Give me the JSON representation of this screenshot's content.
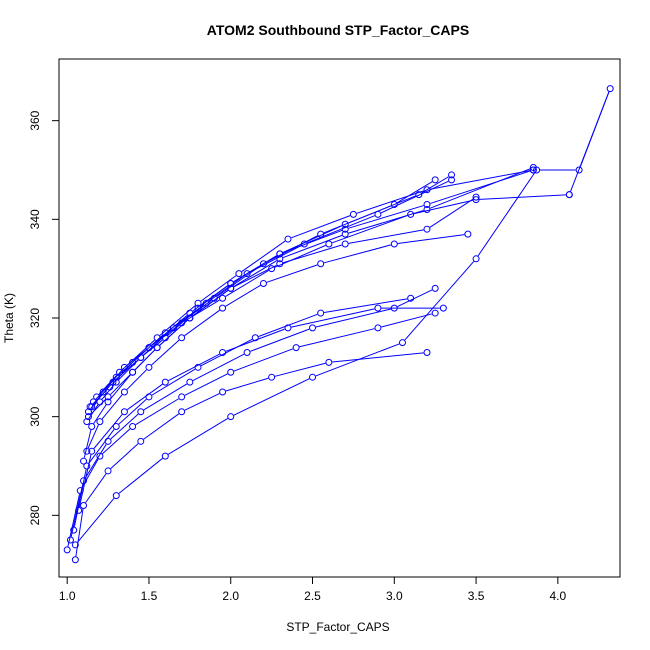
{
  "chart_data": {
    "type": "line",
    "title": "ATOM2 Southbound STP_Factor_CAPS",
    "xlabel": "STP_Factor_CAPS",
    "ylabel": "Theta (K)",
    "xlim": [
      0.95,
      4.38
    ],
    "ylim": [
      267.5,
      372.5
    ],
    "xticks": [
      1.0,
      1.5,
      2.0,
      2.5,
      3.0,
      3.5,
      4.0
    ],
    "xtick_labels": [
      "1.0",
      "1.5",
      "2.0",
      "2.5",
      "3.0",
      "3.5",
      "4.0"
    ],
    "yticks": [
      280,
      300,
      320,
      340,
      360
    ],
    "ytick_labels": [
      "280",
      "300",
      "320",
      "340",
      "360"
    ],
    "grid": false,
    "color": "#0000ff",
    "marker": "open-circle",
    "series": [
      {
        "points": [
          [
            1.05,
            271
          ],
          [
            1.1,
            282
          ],
          [
            1.25,
            289
          ],
          [
            1.45,
            295
          ],
          [
            1.7,
            301
          ],
          [
            1.95,
            305
          ],
          [
            2.25,
            308
          ],
          [
            2.6,
            311
          ],
          [
            3.2,
            313
          ]
        ]
      },
      {
        "points": [
          [
            1.0,
            273
          ],
          [
            1.08,
            285
          ],
          [
            1.2,
            292
          ],
          [
            1.4,
            298
          ],
          [
            1.7,
            304
          ],
          [
            2.0,
            309
          ],
          [
            2.4,
            314
          ],
          [
            2.9,
            318
          ],
          [
            3.25,
            321
          ]
        ]
      },
      {
        "points": [
          [
            1.02,
            275
          ],
          [
            1.1,
            287
          ],
          [
            1.25,
            295
          ],
          [
            1.45,
            301
          ],
          [
            1.75,
            307
          ],
          [
            2.1,
            313
          ],
          [
            2.5,
            318
          ],
          [
            3.0,
            322
          ],
          [
            3.25,
            326
          ]
        ]
      },
      {
        "points": [
          [
            1.04,
            277
          ],
          [
            1.12,
            290
          ],
          [
            1.3,
            298
          ],
          [
            1.5,
            304
          ],
          [
            1.8,
            310
          ],
          [
            2.15,
            316
          ],
          [
            2.55,
            321
          ],
          [
            3.1,
            324
          ]
        ]
      },
      {
        "points": [
          [
            1.07,
            281
          ],
          [
            1.15,
            293
          ],
          [
            1.35,
            301
          ],
          [
            1.6,
            307
          ],
          [
            1.95,
            313
          ],
          [
            2.35,
            318
          ],
          [
            2.9,
            322
          ],
          [
            3.3,
            322
          ]
        ]
      },
      {
        "points": [
          [
            1.1,
            291
          ],
          [
            1.15,
            298
          ],
          [
            1.25,
            303
          ],
          [
            1.4,
            309
          ],
          [
            1.55,
            314
          ],
          [
            1.75,
            320
          ],
          [
            2.0,
            326
          ],
          [
            2.3,
            331
          ],
          [
            2.7,
            335
          ],
          [
            3.2,
            338
          ],
          [
            3.5,
            344.5
          ]
        ]
      },
      {
        "points": [
          [
            1.12,
            293
          ],
          [
            1.2,
            299
          ],
          [
            1.35,
            305
          ],
          [
            1.5,
            310
          ],
          [
            1.7,
            316
          ],
          [
            1.95,
            322
          ],
          [
            2.2,
            327
          ],
          [
            2.55,
            331
          ],
          [
            3.0,
            335
          ],
          [
            3.45,
            337
          ]
        ]
      },
      {
        "points": [
          [
            1.12,
            299
          ],
          [
            1.2,
            303
          ],
          [
            1.3,
            307
          ],
          [
            1.45,
            312
          ],
          [
            1.6,
            316
          ],
          [
            1.8,
            322
          ],
          [
            2.0,
            327
          ],
          [
            2.3,
            333
          ],
          [
            2.7,
            338
          ],
          [
            3.2,
            343
          ],
          [
            3.85,
            350
          ]
        ]
      },
      {
        "points": [
          [
            1.13,
            300
          ],
          [
            1.25,
            304
          ],
          [
            1.4,
            309
          ],
          [
            1.55,
            314
          ],
          [
            1.75,
            320
          ],
          [
            2.0,
            326
          ],
          [
            2.3,
            332
          ],
          [
            2.7,
            337
          ],
          [
            3.2,
            342
          ],
          [
            3.85,
            350.5
          ]
        ]
      },
      {
        "points": [
          [
            1.13,
            301
          ],
          [
            1.22,
            305
          ],
          [
            1.35,
            310
          ],
          [
            1.5,
            314
          ],
          [
            1.7,
            319
          ],
          [
            1.95,
            324
          ],
          [
            2.25,
            330
          ],
          [
            2.6,
            335
          ],
          [
            3.1,
            341
          ],
          [
            3.5,
            344
          ],
          [
            4.07,
            345
          ]
        ]
      },
      {
        "points": [
          [
            1.14,
            302
          ],
          [
            1.26,
            306
          ],
          [
            1.4,
            311
          ],
          [
            1.6,
            317
          ],
          [
            1.85,
            323
          ],
          [
            2.1,
            329
          ],
          [
            2.45,
            335
          ],
          [
            2.9,
            341
          ],
          [
            3.35,
            348
          ]
        ]
      },
      {
        "points": [
          [
            1.15,
            302
          ],
          [
            1.28,
            307
          ],
          [
            1.45,
            312
          ],
          [
            1.65,
            318
          ],
          [
            1.9,
            324
          ],
          [
            2.2,
            331
          ],
          [
            2.55,
            337
          ],
          [
            3.0,
            343
          ],
          [
            3.25,
            348
          ]
        ]
      },
      {
        "points": [
          [
            1.16,
            303
          ],
          [
            1.3,
            308
          ],
          [
            1.5,
            314
          ],
          [
            1.75,
            321
          ],
          [
            2.0,
            327
          ],
          [
            2.3,
            333
          ],
          [
            2.7,
            339
          ],
          [
            3.15,
            345
          ],
          [
            3.35,
            349
          ]
        ]
      },
      {
        "points": [
          [
            1.18,
            304
          ],
          [
            1.32,
            309
          ],
          [
            1.55,
            316
          ],
          [
            1.8,
            323
          ],
          [
            2.05,
            329
          ],
          [
            2.35,
            336
          ],
          [
            2.75,
            341
          ],
          [
            3.2,
            346
          ],
          [
            3.85,
            350
          ]
        ]
      },
      {
        "points": [
          [
            1.05,
            274
          ],
          [
            1.3,
            284
          ],
          [
            1.6,
            292
          ],
          [
            2.0,
            300
          ],
          [
            2.5,
            308
          ],
          [
            3.05,
            315
          ],
          [
            3.5,
            332
          ],
          [
            3.87,
            350
          ],
          [
            4.13,
            350
          ],
          [
            4.32,
            366.5
          ],
          [
            4.07,
            345
          ]
        ]
      }
    ]
  }
}
